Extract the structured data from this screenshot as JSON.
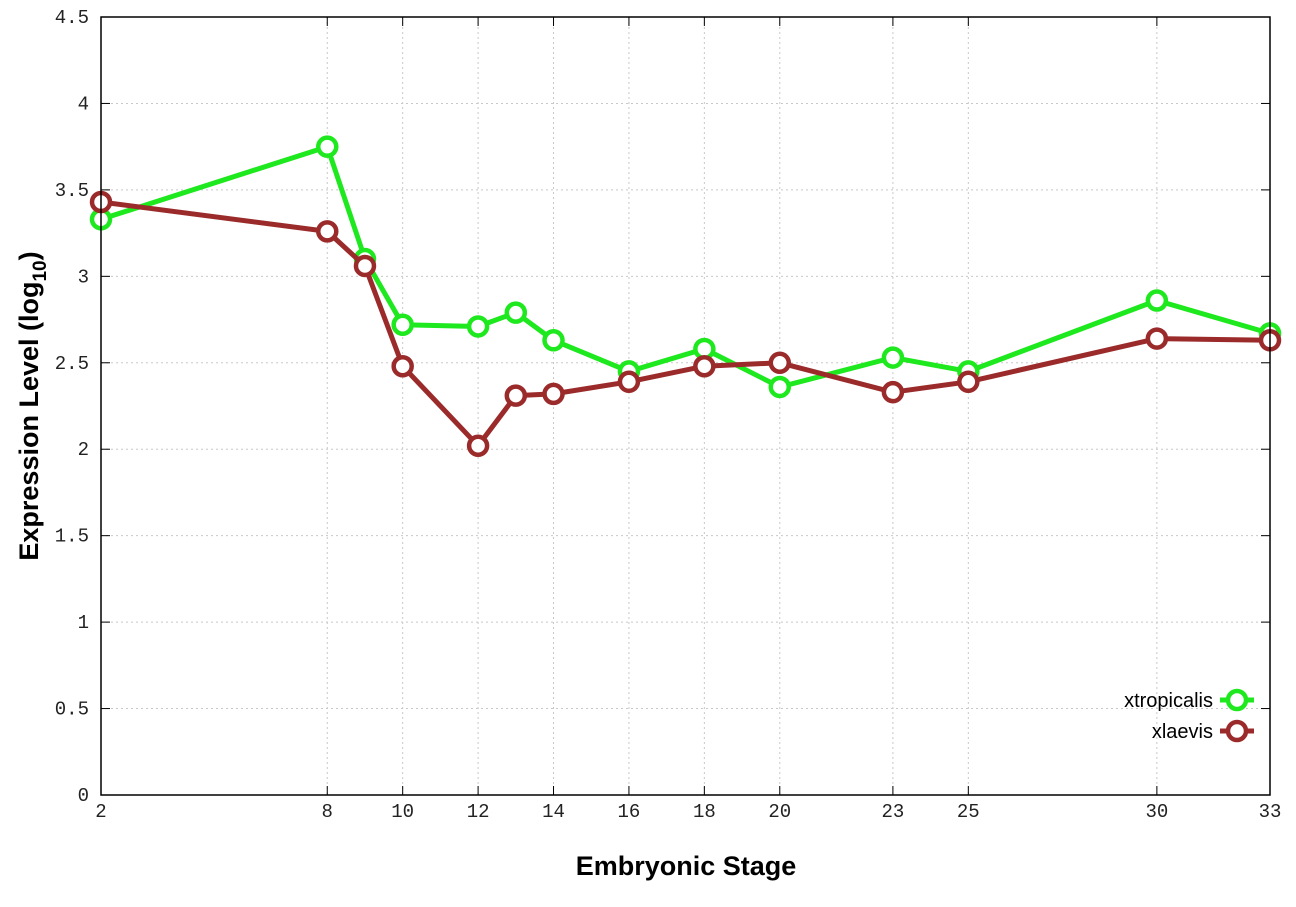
{
  "chart_data": {
    "type": "line",
    "xlabel": "Embryonic Stage",
    "ylabel_main": "Expression Level (log",
    "ylabel_sub": "10",
    "ylabel_close": ")",
    "xlim": [
      2,
      33
    ],
    "ylim": [
      0,
      4.5
    ],
    "x_ticks": [
      2,
      8,
      10,
      12,
      14,
      16,
      18,
      20,
      23,
      25,
      30,
      33
    ],
    "x_tick_labels": [
      "2",
      "8",
      "10",
      "12",
      "14",
      "16",
      "18",
      "20",
      "23",
      "25",
      "30",
      "33"
    ],
    "y_ticks": [
      0,
      0.5,
      1,
      1.5,
      2,
      2.5,
      3,
      3.5,
      4,
      4.5
    ],
    "y_tick_labels": [
      "0",
      "0.5",
      "1",
      "1.5",
      "2",
      "2.5",
      "3",
      "3.5",
      "4",
      "4.5"
    ],
    "grid": true,
    "legend_position": "bottom-right",
    "series": [
      {
        "name": "xtropicalis",
        "color": "#1ee81e",
        "x": [
          2,
          8,
          9,
          10,
          12,
          13,
          14,
          16,
          18,
          20,
          23,
          25,
          30,
          33
        ],
        "y": [
          3.33,
          3.75,
          3.1,
          2.72,
          2.71,
          2.79,
          2.63,
          2.45,
          2.58,
          2.36,
          2.53,
          2.45,
          2.86,
          2.67
        ]
      },
      {
        "name": "xlaevis",
        "color": "#9b2b2b",
        "x": [
          2,
          8,
          9,
          10,
          12,
          13,
          14,
          16,
          18,
          20,
          23,
          25,
          30,
          33
        ],
        "y": [
          3.43,
          3.26,
          3.06,
          2.48,
          2.02,
          2.31,
          2.32,
          2.39,
          2.48,
          2.5,
          2.33,
          2.39,
          2.64,
          2.63
        ]
      }
    ]
  }
}
